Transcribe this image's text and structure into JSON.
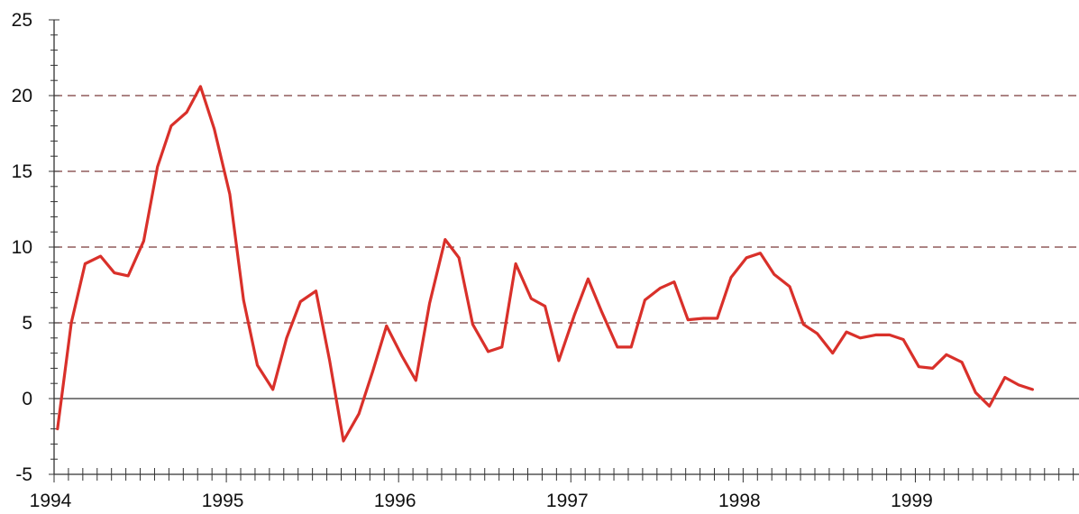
{
  "chart_data": {
    "type": "line",
    "title": "",
    "xlabel": "",
    "ylabel": "",
    "ylim": [
      -5,
      25
    ],
    "xlim": [
      1994,
      1999.95
    ],
    "y_ticks": [
      "-5",
      "0",
      "5",
      "10",
      "15",
      "20",
      "25"
    ],
    "x_ticks": [
      "1994",
      "1995",
      "1996",
      "1997",
      "1998",
      "1999"
    ],
    "grid": "dashed horizontal lines at 5, 10, 15, 20",
    "zero_line": true,
    "colors": {
      "line": "#d9302a",
      "grid": "#7a3a3a",
      "axis": "#333333"
    },
    "series": [
      {
        "x": [
          1994.02,
          1994.1,
          1994.18,
          1994.27,
          1994.35,
          1994.43,
          1994.52,
          1994.6,
          1994.68,
          1994.77,
          1994.85,
          1994.93,
          1995.02,
          1995.1,
          1995.18,
          1995.27,
          1995.35,
          1995.43,
          1995.52,
          1995.6,
          1995.68,
          1995.77,
          1995.85,
          1995.93,
          1996.02,
          1996.1,
          1996.18,
          1996.27,
          1996.35,
          1996.43,
          1996.52,
          1996.6,
          1996.68,
          1996.77,
          1996.85,
          1996.93,
          1997.02,
          1997.1,
          1997.18,
          1997.27,
          1997.35,
          1997.43,
          1997.52,
          1997.6,
          1997.68,
          1997.77,
          1997.85,
          1997.93,
          1998.02,
          1998.1,
          1998.18,
          1998.27,
          1998.35,
          1998.43,
          1998.52,
          1998.6,
          1998.68,
          1998.77,
          1998.85,
          1998.93,
          1999.02,
          1999.1,
          1999.18,
          1999.27,
          1999.35,
          1999.43,
          1999.52,
          1999.6,
          1999.68
        ],
        "values": [
          -2.0,
          5.0,
          8.9,
          9.4,
          8.3,
          8.1,
          10.4,
          15.3,
          18.0,
          18.9,
          20.6,
          17.8,
          13.5,
          6.5,
          2.2,
          0.6,
          4.0,
          6.4,
          7.1,
          2.5,
          -2.8,
          -1.0,
          1.8,
          4.8,
          2.8,
          1.2,
          6.3,
          10.5,
          9.3,
          4.9,
          3.1,
          3.4,
          8.9,
          6.6,
          6.1,
          2.5,
          5.5,
          7.9,
          5.7,
          3.4,
          3.4,
          6.5,
          7.3,
          7.7,
          5.2,
          5.3,
          5.3,
          8.0,
          9.3,
          9.6,
          8.2,
          7.4,
          4.9,
          4.3,
          3.0,
          4.4,
          4.0,
          4.2,
          4.2,
          3.9,
          2.1,
          2.0,
          2.9,
          2.4,
          0.4,
          -0.5,
          1.4,
          0.9,
          0.6
        ]
      }
    ]
  }
}
